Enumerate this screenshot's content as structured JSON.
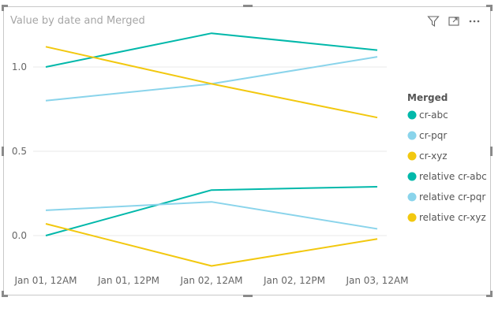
{
  "visual": {
    "title": "Value by date and Merged",
    "icons": [
      "filter-icon",
      "focus-mode-icon",
      "more-options-icon"
    ]
  },
  "chart_data": {
    "type": "line",
    "x": [
      "Jan 01, 12AM",
      "Jan 01, 12PM",
      "Jan 02, 12AM",
      "Jan 02, 12PM",
      "Jan 03, 12AM"
    ],
    "ylim": [
      -0.2,
      1.2
    ],
    "yticks": [
      "1.0",
      "0.5",
      "0.0"
    ],
    "grid": true,
    "legend": {
      "title": "Merged",
      "position": "right"
    },
    "series": [
      {
        "name": "cr-abc",
        "color": "#01B8AA",
        "points": [
          [
            "Jan 01, 12AM",
            1.0
          ],
          [
            "Jan 02, 12AM",
            1.2
          ],
          [
            "Jan 03, 12AM",
            1.1
          ]
        ]
      },
      {
        "name": "cr-pqr",
        "color": "#8AD4EB",
        "points": [
          [
            "Jan 01, 12AM",
            0.8
          ],
          [
            "Jan 02, 12AM",
            0.9
          ],
          [
            "Jan 03, 12AM",
            1.06
          ]
        ]
      },
      {
        "name": "cr-xyz",
        "color": "#F2C80F",
        "points": [
          [
            "Jan 01, 12AM",
            1.12
          ],
          [
            "Jan 02, 12AM",
            0.9
          ],
          [
            "Jan 03, 12AM",
            0.7
          ]
        ]
      },
      {
        "name": "relative cr-abc",
        "color": "#01B8AA",
        "points": [
          [
            "Jan 01, 12AM",
            0.0
          ],
          [
            "Jan 02, 12AM",
            0.27
          ],
          [
            "Jan 03, 12AM",
            0.29
          ]
        ]
      },
      {
        "name": "relative cr-pqr",
        "color": "#8AD4EB",
        "points": [
          [
            "Jan 01, 12AM",
            0.15
          ],
          [
            "Jan 02, 12AM",
            0.2
          ],
          [
            "Jan 03, 12AM",
            0.04
          ]
        ]
      },
      {
        "name": "relative cr-xyz",
        "color": "#F2C80F",
        "points": [
          [
            "Jan 01, 12AM",
            0.07
          ],
          [
            "Jan 02, 12AM",
            -0.18
          ],
          [
            "Jan 03, 12AM",
            -0.02
          ]
        ]
      }
    ]
  }
}
